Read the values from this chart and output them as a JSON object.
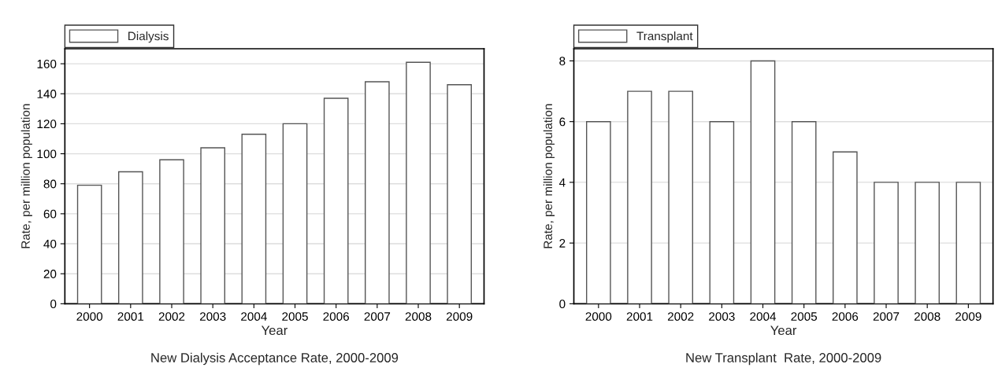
{
  "chart_data": [
    {
      "type": "bar",
      "title": "New Dialysis Acceptance Rate, 2000-2009",
      "xlabel": "Year",
      "ylabel": "Rate, per million population",
      "categories": [
        "2000",
        "2001",
        "2002",
        "2003",
        "2004",
        "2005",
        "2006",
        "2007",
        "2008",
        "2009"
      ],
      "series": [
        {
          "name": "Dialysis",
          "color": "#ffffff",
          "values": [
            79,
            88,
            96,
            104,
            113,
            120,
            137,
            148,
            161,
            146
          ]
        }
      ],
      "ylim": [
        0,
        170
      ],
      "yticks": [
        0,
        20,
        40,
        60,
        80,
        100,
        120,
        140,
        160
      ],
      "grid": "y",
      "legend": "top left"
    },
    {
      "type": "bar",
      "title": "New Transplant  Rate, 2000-2009",
      "xlabel": "Year",
      "ylabel": "Rate, per million population",
      "categories": [
        "2000",
        "2001",
        "2002",
        "2003",
        "2004",
        "2005",
        "2006",
        "2007",
        "2008",
        "2009"
      ],
      "series": [
        {
          "name": "Transplant",
          "color": "#ffffff",
          "values": [
            6,
            7,
            7,
            6,
            8,
            6,
            5,
            4,
            4,
            4
          ]
        }
      ],
      "ylim": [
        0,
        8.4
      ],
      "yticks": [
        0,
        2,
        4,
        6,
        8
      ],
      "grid": "y",
      "legend": "top left"
    }
  ]
}
